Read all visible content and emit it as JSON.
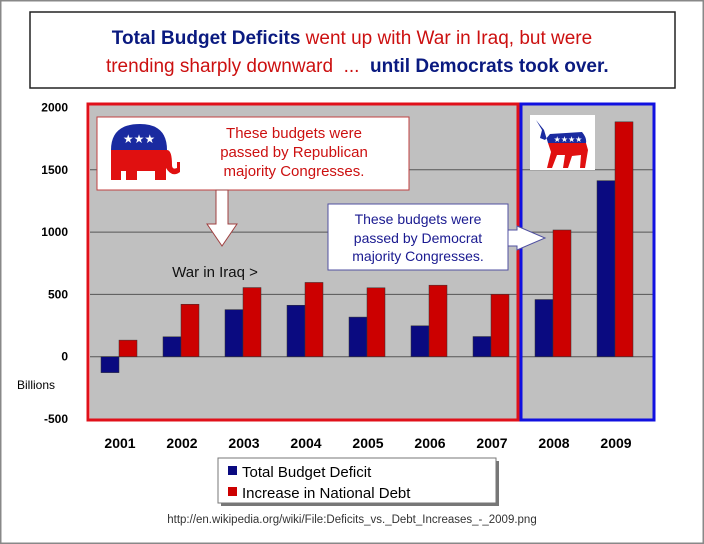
{
  "title": {
    "line1_part1": "Total Budget Deficits",
    "line1_part2": " went up with War in Iraq, but were",
    "line2_part1": "trending sharply downward  ...  ",
    "line2_part2": "until Democrats took over."
  },
  "colors": {
    "deficit": "#0a0a80",
    "debt": "#cc0000",
    "republican_box": "#e0101a",
    "democrat_box": "#1010e0",
    "plot_bg": "#c0c0c0",
    "title_blue": "#0a1a80",
    "title_red": "#cc1010"
  },
  "annotations": {
    "republican": [
      "These budgets were",
      "passed by Republican",
      "majority Congresses."
    ],
    "democrat": [
      "These budgets were",
      "passed by Democrat",
      "majority Congresses."
    ],
    "war": "War in Iraq >",
    "republican_icon": "elephant-icon",
    "democrat_icon": "donkey-icon"
  },
  "source": "http://en.wikipedia.org/wiki/File:Deficits_vs._Debt_Increases_-_2009.png",
  "chart_data": {
    "type": "bar",
    "categories": [
      "2001",
      "2002",
      "2003",
      "2004",
      "2005",
      "2006",
      "2007",
      "2008",
      "2009"
    ],
    "series": [
      {
        "name": "Total Budget Deficit",
        "values": [
          -128,
          160,
          378,
          413,
          318,
          248,
          162,
          459,
          1413
        ]
      },
      {
        "name": "Increase in National Debt",
        "values": [
          133,
          421,
          555,
          596,
          553,
          574,
          501,
          1017,
          1885
        ]
      }
    ],
    "ylabel": "Billions",
    "ylim": [
      -500,
      2000
    ],
    "yticks": [
      "2000",
      "1500",
      "1000",
      "500",
      "0",
      "-500"
    ],
    "grid": true,
    "legend": "bottom"
  }
}
